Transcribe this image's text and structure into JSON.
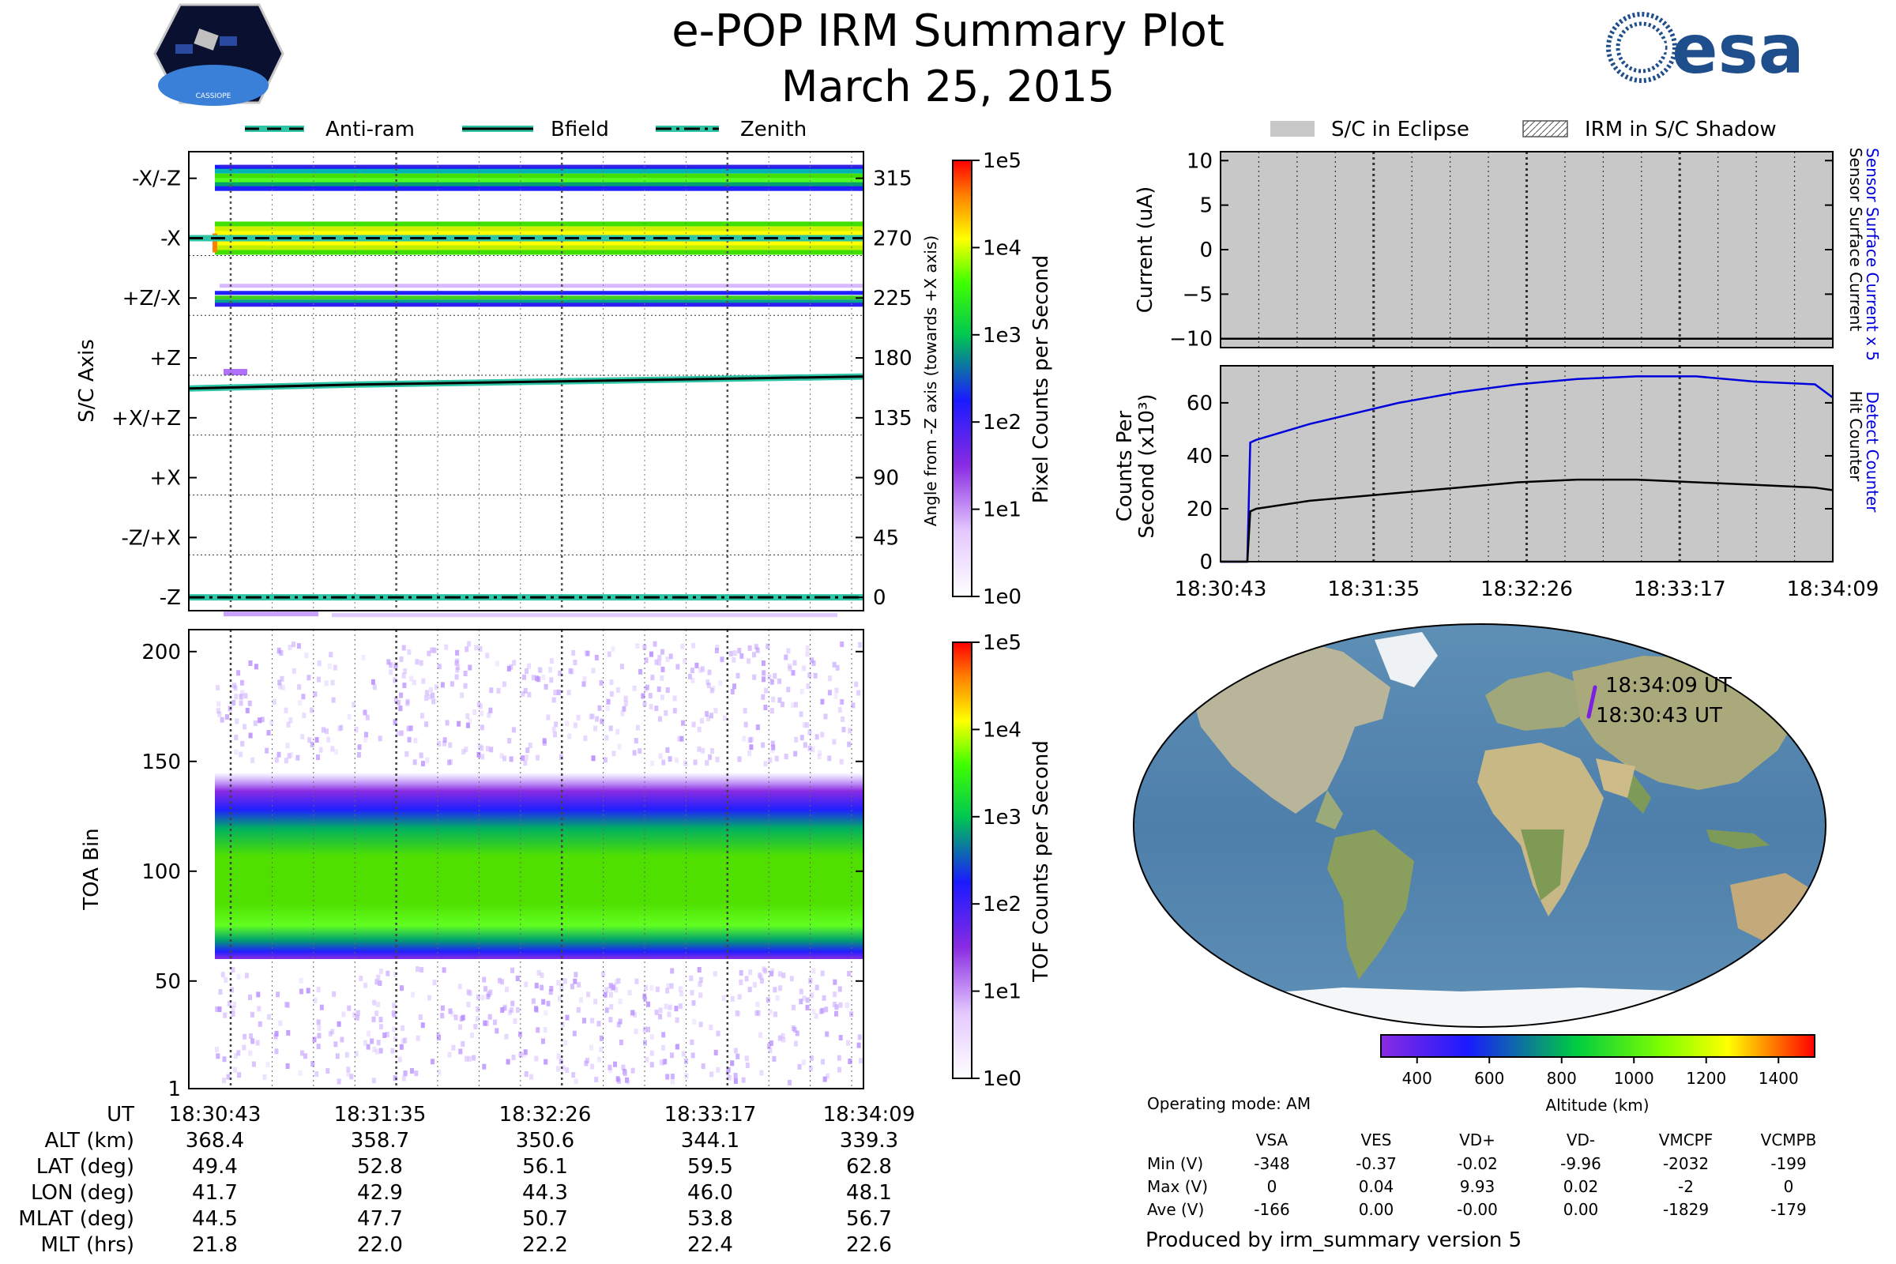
{
  "header": {
    "title": "e-POP IRM Summary Plot",
    "date": "March 25, 2015",
    "mission_badge_text": "CASSIOPE",
    "agency_logo_text": "esa"
  },
  "colors": {
    "accent_teal": "#2ec4a6",
    "detect_blue": "#0000dd",
    "eclipse_gray": "#c8c8c8"
  },
  "chart_data": [
    {
      "id": "sc_axis",
      "type": "heatmap",
      "title": "",
      "ylabel": "S/C Axis",
      "y2label": "Angle from -Z axis (towards +X axis)",
      "ylim": [
        -10,
        335
      ],
      "y_tick_labels": [
        "-X/-Z",
        "-X",
        "+Z/-X",
        "+Z",
        "+X/+Z",
        "+X",
        "-Z/+X",
        "-Z"
      ],
      "y_tick_values": [
        315,
        270,
        225,
        180,
        135,
        90,
        45,
        0
      ],
      "y2_tick_labels": [
        "315",
        "270",
        "225",
        "180",
        "135",
        "90",
        "45",
        "0"
      ],
      "legend": {
        "placement": "top",
        "entries": [
          "Anti-ram",
          "Bfield",
          "Zenith"
        ]
      },
      "colorbar": {
        "label": "Pixel Counts per Second",
        "ticks": [
          "1e5",
          "1e4",
          "1e3",
          "1e2",
          "1e1",
          "1e0"
        ]
      },
      "series": [
        {
          "name": "Anti-ram",
          "style": "dashed",
          "values": [
            270,
            270,
            270,
            270,
            270
          ]
        },
        {
          "name": "Bfield",
          "style": "solid",
          "values": [
            157,
            160,
            162,
            164,
            166
          ]
        },
        {
          "name": "Zenith",
          "style": "dashdot",
          "values": [
            0,
            0,
            0,
            0,
            0
          ]
        }
      ],
      "bands": [
        {
          "center": 315,
          "level": "blue-green"
        },
        {
          "center": 270,
          "level": "yellow-orange"
        },
        {
          "center": 225,
          "level": "blue-green"
        }
      ]
    },
    {
      "id": "toa",
      "type": "heatmap",
      "ylabel": "TOA Bin",
      "ylim": [
        1,
        210
      ],
      "y_tick_labels": [
        "200",
        "150",
        "100",
        "50",
        "1"
      ],
      "colorbar": {
        "label": "TOF Counts per Second",
        "ticks": [
          "1e5",
          "1e4",
          "1e3",
          "1e2",
          "1e1",
          "1e0"
        ]
      },
      "band_core_range": [
        70,
        115
      ],
      "band_full_range": [
        60,
        145
      ]
    },
    {
      "id": "current",
      "type": "line",
      "ylabel": "Current (uA)",
      "ylim": [
        -11,
        11
      ],
      "y_tick_labels": [
        "10",
        "5",
        "0",
        "−5",
        "−10"
      ],
      "y_tick_values": [
        10,
        5,
        0,
        -5,
        -10
      ],
      "right_labels": [
        "Sensor Surface Current x 5",
        "Sensor Surface Current"
      ],
      "legend": {
        "placement": "top",
        "entries": [
          "S/C in Eclipse",
          "IRM in S/C Shadow"
        ]
      },
      "series": [
        {
          "name": "Sensor Surface Current",
          "values": [
            -10,
            -10,
            -10,
            -10,
            -10
          ]
        }
      ]
    },
    {
      "id": "counts",
      "type": "line",
      "ylabel": "Counts Per Second (x10³)",
      "ylabel_line1": "Counts Per",
      "ylabel_line2": "Second (x10³)",
      "ylim": [
        0,
        74
      ],
      "y_tick_labels": [
        "60",
        "40",
        "20",
        "0"
      ],
      "y_tick_values": [
        60,
        40,
        20,
        0
      ],
      "right_labels": [
        "Detect Counter",
        "Hit Counter"
      ],
      "x": [
        0,
        6,
        9,
        10,
        12,
        30,
        60,
        80,
        100,
        120,
        140,
        160,
        180,
        200,
        206
      ],
      "series": [
        {
          "name": "Detect Counter",
          "values": [
            0,
            0,
            0,
            45,
            46,
            52,
            60,
            64,
            67,
            69,
            70,
            70,
            68,
            67,
            62
          ]
        },
        {
          "name": "Hit Counter",
          "values": [
            0,
            0,
            0,
            19,
            20,
            23,
            26,
            28,
            30,
            31,
            31,
            30,
            29,
            28,
            27
          ]
        }
      ],
      "x_tick_labels": [
        "18:30:43",
        "18:31:35",
        "18:32:26",
        "18:33:17",
        "18:34:09"
      ]
    }
  ],
  "time_axis": {
    "labels": [
      "18:30:43",
      "18:31:35",
      "18:32:26",
      "18:33:17",
      "18:34:09"
    ]
  },
  "ephemeris": {
    "rows": [
      {
        "label": "UT",
        "values": [
          "18:30:43",
          "18:31:35",
          "18:32:26",
          "18:33:17",
          "18:34:09"
        ]
      },
      {
        "label": "ALT (km)",
        "values": [
          "368.4",
          "358.7",
          "350.6",
          "344.1",
          "339.3"
        ]
      },
      {
        "label": "LAT (deg)",
        "values": [
          "49.4",
          "52.8",
          "56.1",
          "59.5",
          "62.8"
        ]
      },
      {
        "label": "LON (deg)",
        "values": [
          "41.7",
          "42.9",
          "44.3",
          "46.0",
          "48.1"
        ]
      },
      {
        "label": "MLAT (deg)",
        "values": [
          "44.5",
          "47.7",
          "50.7",
          "53.8",
          "56.7"
        ]
      },
      {
        "label": "MLT (hrs)",
        "values": [
          "21.8",
          "22.0",
          "22.2",
          "22.4",
          "22.6"
        ]
      }
    ]
  },
  "map": {
    "start_label": "18:30:43 UT",
    "end_label": "18:34:09 UT",
    "altitude_colorbar": {
      "label": "Altitude (km)",
      "ticks": [
        "400",
        "600",
        "800",
        "1000",
        "1200",
        "1400"
      ]
    }
  },
  "operating_mode": "Operating mode: AM",
  "voltage_table": {
    "columns": [
      "",
      "VSA",
      "VES",
      "VD+",
      "VD-",
      "VMCPF",
      "VCMPB"
    ],
    "rows": [
      [
        "Min (V)",
        "-348",
        "-0.37",
        "-0.02",
        "-9.96",
        "-2032",
        "-199"
      ],
      [
        "Max (V)",
        "0",
        "0.04",
        "9.93",
        "0.02",
        "-2",
        "0"
      ],
      [
        "Ave (V)",
        "-166",
        "0.00",
        "-0.00",
        "0.00",
        "-1829",
        "-179"
      ]
    ]
  },
  "footer": "Produced by irm_summary version 5"
}
